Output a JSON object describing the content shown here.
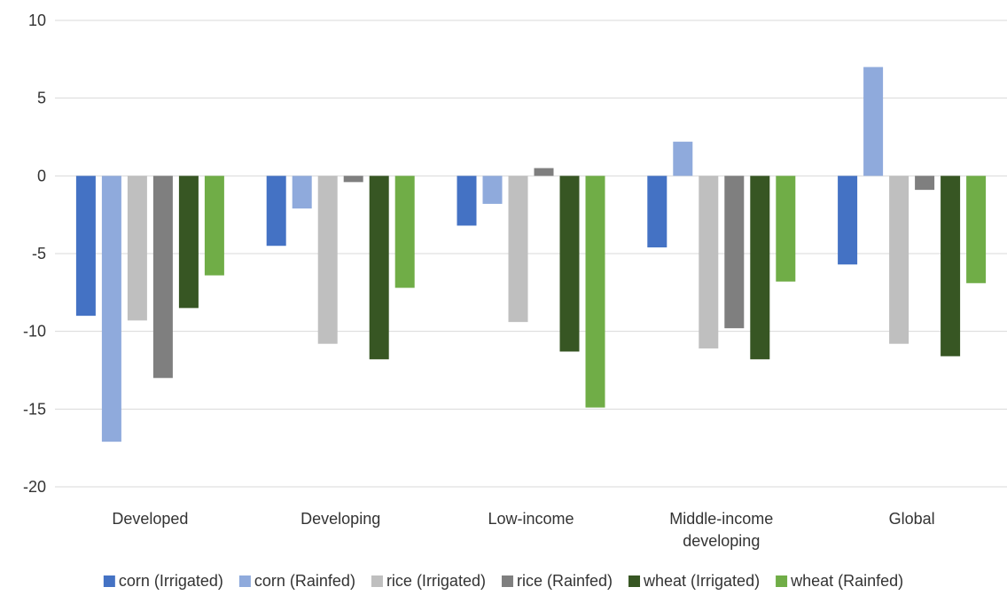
{
  "chart_data": {
    "type": "bar",
    "categories": [
      "Developed",
      "Developing",
      "Low-income",
      "Middle-income developing",
      "Global"
    ],
    "category_lines": [
      [
        "Developed"
      ],
      [
        "Developing"
      ],
      [
        "Low-income"
      ],
      [
        "Middle-income",
        "developing"
      ],
      [
        "Global"
      ]
    ],
    "series": [
      {
        "name": "corn (Irrigated)",
        "color": "#4472c4",
        "values": [
          -9.0,
          -4.5,
          -3.2,
          -4.6,
          -5.7
        ]
      },
      {
        "name": "corn (Rainfed)",
        "color": "#8faadc",
        "values": [
          -17.1,
          -2.1,
          -1.8,
          2.2,
          7.0
        ]
      },
      {
        "name": "rice (Irrigated)",
        "color": "#bfbfbf",
        "values": [
          -9.3,
          -10.8,
          -9.4,
          -11.1,
          -10.8
        ]
      },
      {
        "name": "rice (Rainfed)",
        "color": "#7f7f7f",
        "values": [
          -13.0,
          -0.4,
          0.5,
          -9.8,
          -0.9
        ]
      },
      {
        "name": "wheat (Irrigated)",
        "color": "#375623",
        "values": [
          -8.5,
          -11.8,
          -11.3,
          -11.8,
          -11.6
        ]
      },
      {
        "name": "wheat (Rainfed)",
        "color": "#70ad47",
        "values": [
          -6.4,
          -7.2,
          -14.9,
          -6.8,
          -6.9
        ]
      }
    ],
    "yticks": [
      10,
      5,
      0,
      -5,
      -10,
      -15,
      -20
    ],
    "ylim": [
      -20,
      10
    ],
    "title": "",
    "xlabel": "",
    "ylabel": "",
    "grid": true,
    "legend_position": "bottom"
  }
}
